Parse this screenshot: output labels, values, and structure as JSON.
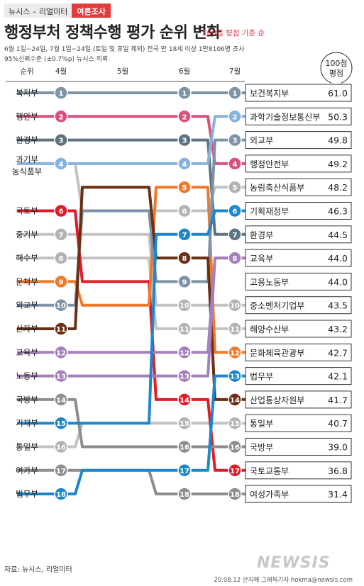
{
  "header": {
    "source_tag": "뉴시스 – 리얼미터",
    "poll_tag": "여론조사",
    "title": "행정부처 정책수행 평가 순위 변화",
    "subtitle": "100점 평점 기준 순",
    "note_line1": "6월 1일~24일, 7월 1일~24일 (토일 및 휴일 제외) 전국 만 18세 이상 1만8106명 조사",
    "note_line2": "95%신뢰수준 (±0.7%p) 뉴시스 의뢰"
  },
  "footer": {
    "source": "자료: 뉴시스, 리얼미터",
    "credit": "20.08.12 안지혜 그래픽기자 hokma@newsis.com",
    "watermark": "NEWSIS"
  },
  "colors": {
    "default_line": "#c3c3c3",
    "default_circle": "#b3b3b3",
    "blue": "#1e87cc",
    "pink": "#d6537f",
    "slate": "#5f7480",
    "steel": "#7f93a7",
    "brown": "#6b2f12",
    "red": "#e01c28",
    "orange": "#ee7a2c",
    "purple": "#a57fbd",
    "gray": "#8d8d8d",
    "light_blue": "#88b3dd"
  },
  "chart_data": {
    "type": "bump",
    "title": "행정부처 정책수행 평가 순위 변화",
    "x_label": "순위",
    "x": [
      "4월",
      "5월",
      "6월",
      "7월"
    ],
    "value_header": "100점 평점",
    "rank_range": [
      1,
      18
    ],
    "april_ministries": [
      "복지부",
      "행안부",
      "환경부",
      "과기부\n농식품부",
      "국토부",
      "중기부",
      "해수부",
      "문체부",
      "외교부",
      "산자부",
      "교육부",
      "노동부",
      "국방부",
      "기재부",
      "통일부",
      "여가부",
      "법무부"
    ],
    "april_rank_labels": [
      1,
      2,
      3,
      4,
      6,
      7,
      8,
      9,
      10,
      11,
      12,
      13,
      14,
      15,
      16,
      17,
      18
    ],
    "july_ranking": [
      {
        "rank": 1,
        "name": "보건복지부",
        "score": "61.0"
      },
      {
        "rank": 2,
        "name": "과학기술정보통신부",
        "score": "50.3"
      },
      {
        "rank": 3,
        "name": "외교부",
        "score": "49.8"
      },
      {
        "rank": 4,
        "name": "행정안전부",
        "score": "49.2"
      },
      {
        "rank": 5,
        "name": "농림축산식품부",
        "score": "48.2"
      },
      {
        "rank": 6,
        "name": "기획재정부",
        "score": "46.3"
      },
      {
        "rank": 7,
        "name": "환경부",
        "score": "44.5"
      },
      {
        "rank": 8,
        "name": "교육부",
        "score": "44.0"
      },
      {
        "rank": null,
        "name": "고용노동부",
        "score": "44.0"
      },
      {
        "rank": 10,
        "name": "중소벤처기업부",
        "score": "43.5"
      },
      {
        "rank": 11,
        "name": "해양수산부",
        "score": "43.2"
      },
      {
        "rank": 12,
        "name": "문화체육관광부",
        "score": "42.7"
      },
      {
        "rank": 13,
        "name": "법무부",
        "score": "42.1"
      },
      {
        "rank": 14,
        "name": "산업통상자원부",
        "score": "41.7"
      },
      {
        "rank": 15,
        "name": "통일부",
        "score": "40.7"
      },
      {
        "rank": 16,
        "name": "국방부",
        "score": "39.0"
      },
      {
        "rank": 17,
        "name": "국토교통부",
        "score": "36.8"
      },
      {
        "rank": 18,
        "name": "여성가족부",
        "score": "31.4"
      }
    ],
    "june_rank_labels": [
      1,
      2,
      3,
      4,
      5,
      6,
      7,
      8,
      9,
      10,
      11,
      12,
      13,
      14,
      15,
      16,
      17,
      18
    ],
    "series": [
      {
        "april": "복지부",
        "ranks": [
          1,
          1,
          1,
          1
        ],
        "color": "steel"
      },
      {
        "april": "행안부",
        "ranks": [
          2,
          2,
          2,
          4
        ],
        "color": "pink"
      },
      {
        "april": "환경부",
        "ranks": [
          3,
          3,
          3,
          7
        ],
        "color": "slate"
      },
      {
        "april": "과기부",
        "ranks": [
          4,
          4,
          4,
          2
        ],
        "color": "light_blue"
      },
      {
        "april": "농식품부",
        "ranks": [
          4,
          6,
          6,
          5
        ],
        "color": "default"
      },
      {
        "april": "국토부",
        "ranks": [
          6,
          9,
          14,
          17
        ],
        "color": "red"
      },
      {
        "april": "중기부",
        "ranks": [
          7,
          7,
          10,
          10
        ],
        "color": "default"
      },
      {
        "april": "해수부",
        "ranks": [
          8,
          8,
          11,
          11
        ],
        "color": "default"
      },
      {
        "april": "문체부",
        "ranks": [
          9,
          10,
          5,
          12
        ],
        "color": "orange"
      },
      {
        "april": "외교부",
        "ranks": [
          10,
          6,
          9,
          3
        ],
        "color": "steel"
      },
      {
        "april": "산자부",
        "ranks": [
          11,
          5,
          8,
          14
        ],
        "color": "brown"
      },
      {
        "april": "교육부",
        "ranks": [
          12,
          12,
          12,
          8
        ],
        "color": "purple"
      },
      {
        "april": "노동부",
        "ranks": [
          13,
          13,
          13,
          8
        ],
        "color": "purple"
      },
      {
        "april": "국방부",
        "ranks": [
          14,
          16,
          16,
          16
        ],
        "color": "gray"
      },
      {
        "april": "기재부",
        "ranks": [
          15,
          15,
          7,
          6
        ],
        "color": "blue"
      },
      {
        "april": "통일부",
        "ranks": [
          16,
          15,
          15,
          15
        ],
        "color": "default"
      },
      {
        "april": "여가부",
        "ranks": [
          17,
          17,
          18,
          18
        ],
        "color": "gray"
      },
      {
        "april": "법무부",
        "ranks": [
          18,
          17,
          17,
          13
        ],
        "color": "blue"
      }
    ]
  }
}
